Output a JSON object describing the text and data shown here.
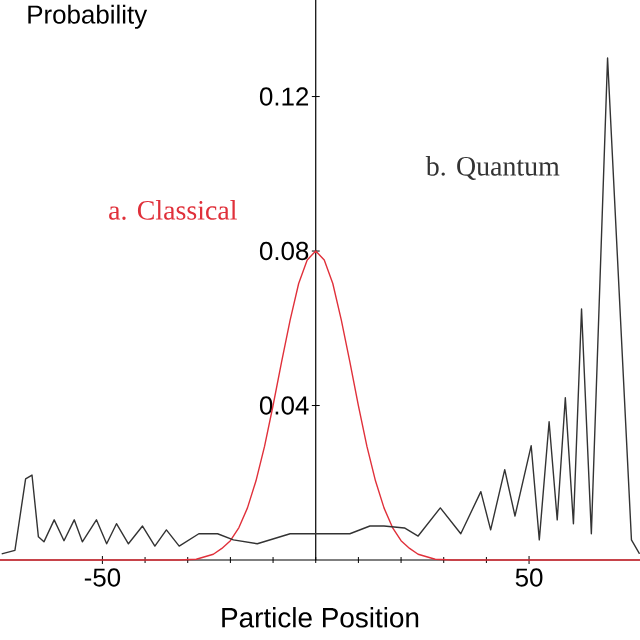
{
  "chart_data": {
    "type": "line",
    "xlabel": "Particle Position",
    "ylabel": "Probability",
    "xlim": [
      -74,
      76
    ],
    "ylim": [
      0,
      0.145
    ],
    "xticks": [
      -50,
      50
    ],
    "yticks": [
      0.04,
      0.08,
      0.12
    ],
    "series": [
      {
        "name": "a. Classical",
        "color": "#e0303a",
        "x": [
          -74,
          -32,
          -28,
          -24,
          -22,
          -20,
          -18,
          -16,
          -14,
          -12,
          -10,
          -8,
          -6,
          -4,
          -2,
          0,
          2,
          4,
          6,
          8,
          10,
          12,
          14,
          16,
          18,
          20,
          22,
          24,
          28,
          32,
          76
        ],
        "values": [
          0,
          0,
          0.0002,
          0.0015,
          0.003,
          0.005,
          0.0084,
          0.0135,
          0.0205,
          0.0294,
          0.04,
          0.0513,
          0.0621,
          0.0716,
          0.0777,
          0.08,
          0.0777,
          0.0716,
          0.0621,
          0.0513,
          0.04,
          0.0294,
          0.0205,
          0.0135,
          0.0084,
          0.005,
          0.003,
          0.0015,
          0.0002,
          0,
          0
        ]
      },
      {
        "name": "b. Quantum",
        "color": "#333333",
        "x": [
          -73.6,
          -70.5,
          -68,
          -66.5,
          -65,
          -63.7,
          -61.3,
          -59,
          -56.6,
          -54.7,
          -51.4,
          -49,
          -46.7,
          -43.9,
          -40.6,
          -37.7,
          -35,
          -32,
          -27.4,
          -23,
          -19.3,
          -13.7,
          -6,
          1,
          8,
          12.7,
          16,
          20.8,
          24,
          29.2,
          34,
          38.7,
          41,
          44.3,
          46.7,
          50.5,
          52.4,
          54.7,
          56.6,
          58.5,
          60.4,
          62.3,
          64.6,
          68.4,
          74,
          75.9
        ],
        "values": [
          0.0016,
          0.0025,
          0.021,
          0.022,
          0.006,
          0.0047,
          0.0104,
          0.005,
          0.0104,
          0.0047,
          0.0104,
          0.0042,
          0.0094,
          0.0042,
          0.0088,
          0.0036,
          0.0078,
          0.0036,
          0.0068,
          0.0068,
          0.0052,
          0.0042,
          0.0068,
          0.0068,
          0.0068,
          0.0088,
          0.0088,
          0.0083,
          0.0062,
          0.0135,
          0.0068,
          0.0177,
          0.0078,
          0.0234,
          0.0114,
          0.0296,
          0.0052,
          0.0358,
          0.0104,
          0.042,
          0.0094,
          0.065,
          0.0068,
          0.13,
          0.0052,
          0.0016
        ]
      }
    ]
  }
}
